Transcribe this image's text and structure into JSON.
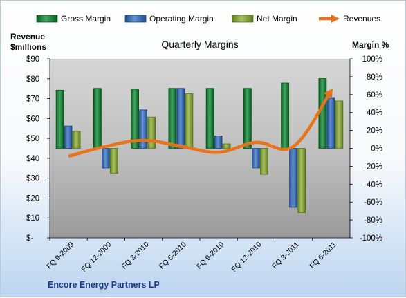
{
  "footer_label": "Encore Energy Partners LP",
  "chart_data": {
    "type": "bar",
    "title": "Quarterly Margins",
    "left_axis_title": [
      "Revenue",
      "$millions"
    ],
    "right_axis_title": "Margin %",
    "categories": [
      "FQ 9-2009",
      "FQ 12-2009",
      "FQ 3-2010",
      "FQ 6-2010",
      "FQ 9-2010",
      "FQ 12-2010",
      "FQ 3-2011",
      "FQ 6-2011"
    ],
    "left_axis": {
      "min": 0,
      "max": 90,
      "step": 10,
      "tick_labels": [
        "$-",
        "$10",
        "$20",
        "$30",
        "$40",
        "$50",
        "$60",
        "$70",
        "$80",
        "$90"
      ]
    },
    "right_axis": {
      "min": -100,
      "max": 100,
      "step": 20,
      "tick_labels": [
        "-100%",
        "-80%",
        "-60%",
        "-40%",
        "-20%",
        "0%",
        "20%",
        "40%",
        "60%",
        "80%",
        "100%"
      ]
    },
    "series": [
      {
        "name": "Gross Margin",
        "axis": "right",
        "kind": "bar",
        "color": "#1e7b3a",
        "values": [
          65,
          67,
          66,
          67,
          67,
          67,
          73,
          78
        ]
      },
      {
        "name": "Operating Margin",
        "axis": "right",
        "kind": "bar",
        "color": "#3c6aa8",
        "values": [
          25,
          -22,
          43,
          67,
          14,
          -22,
          -66,
          56
        ]
      },
      {
        "name": "Net Margin",
        "axis": "right",
        "kind": "bar",
        "color": "#7e9a3a",
        "values": [
          19,
          -28,
          35,
          61,
          5,
          -29,
          -72,
          53
        ]
      },
      {
        "name": "Revenues",
        "axis": "left",
        "kind": "line",
        "color": "#e8731a",
        "values": [
          41,
          46,
          49,
          46,
          43,
          48,
          46,
          74
        ]
      }
    ],
    "grid": false,
    "legend_position": "top"
  }
}
